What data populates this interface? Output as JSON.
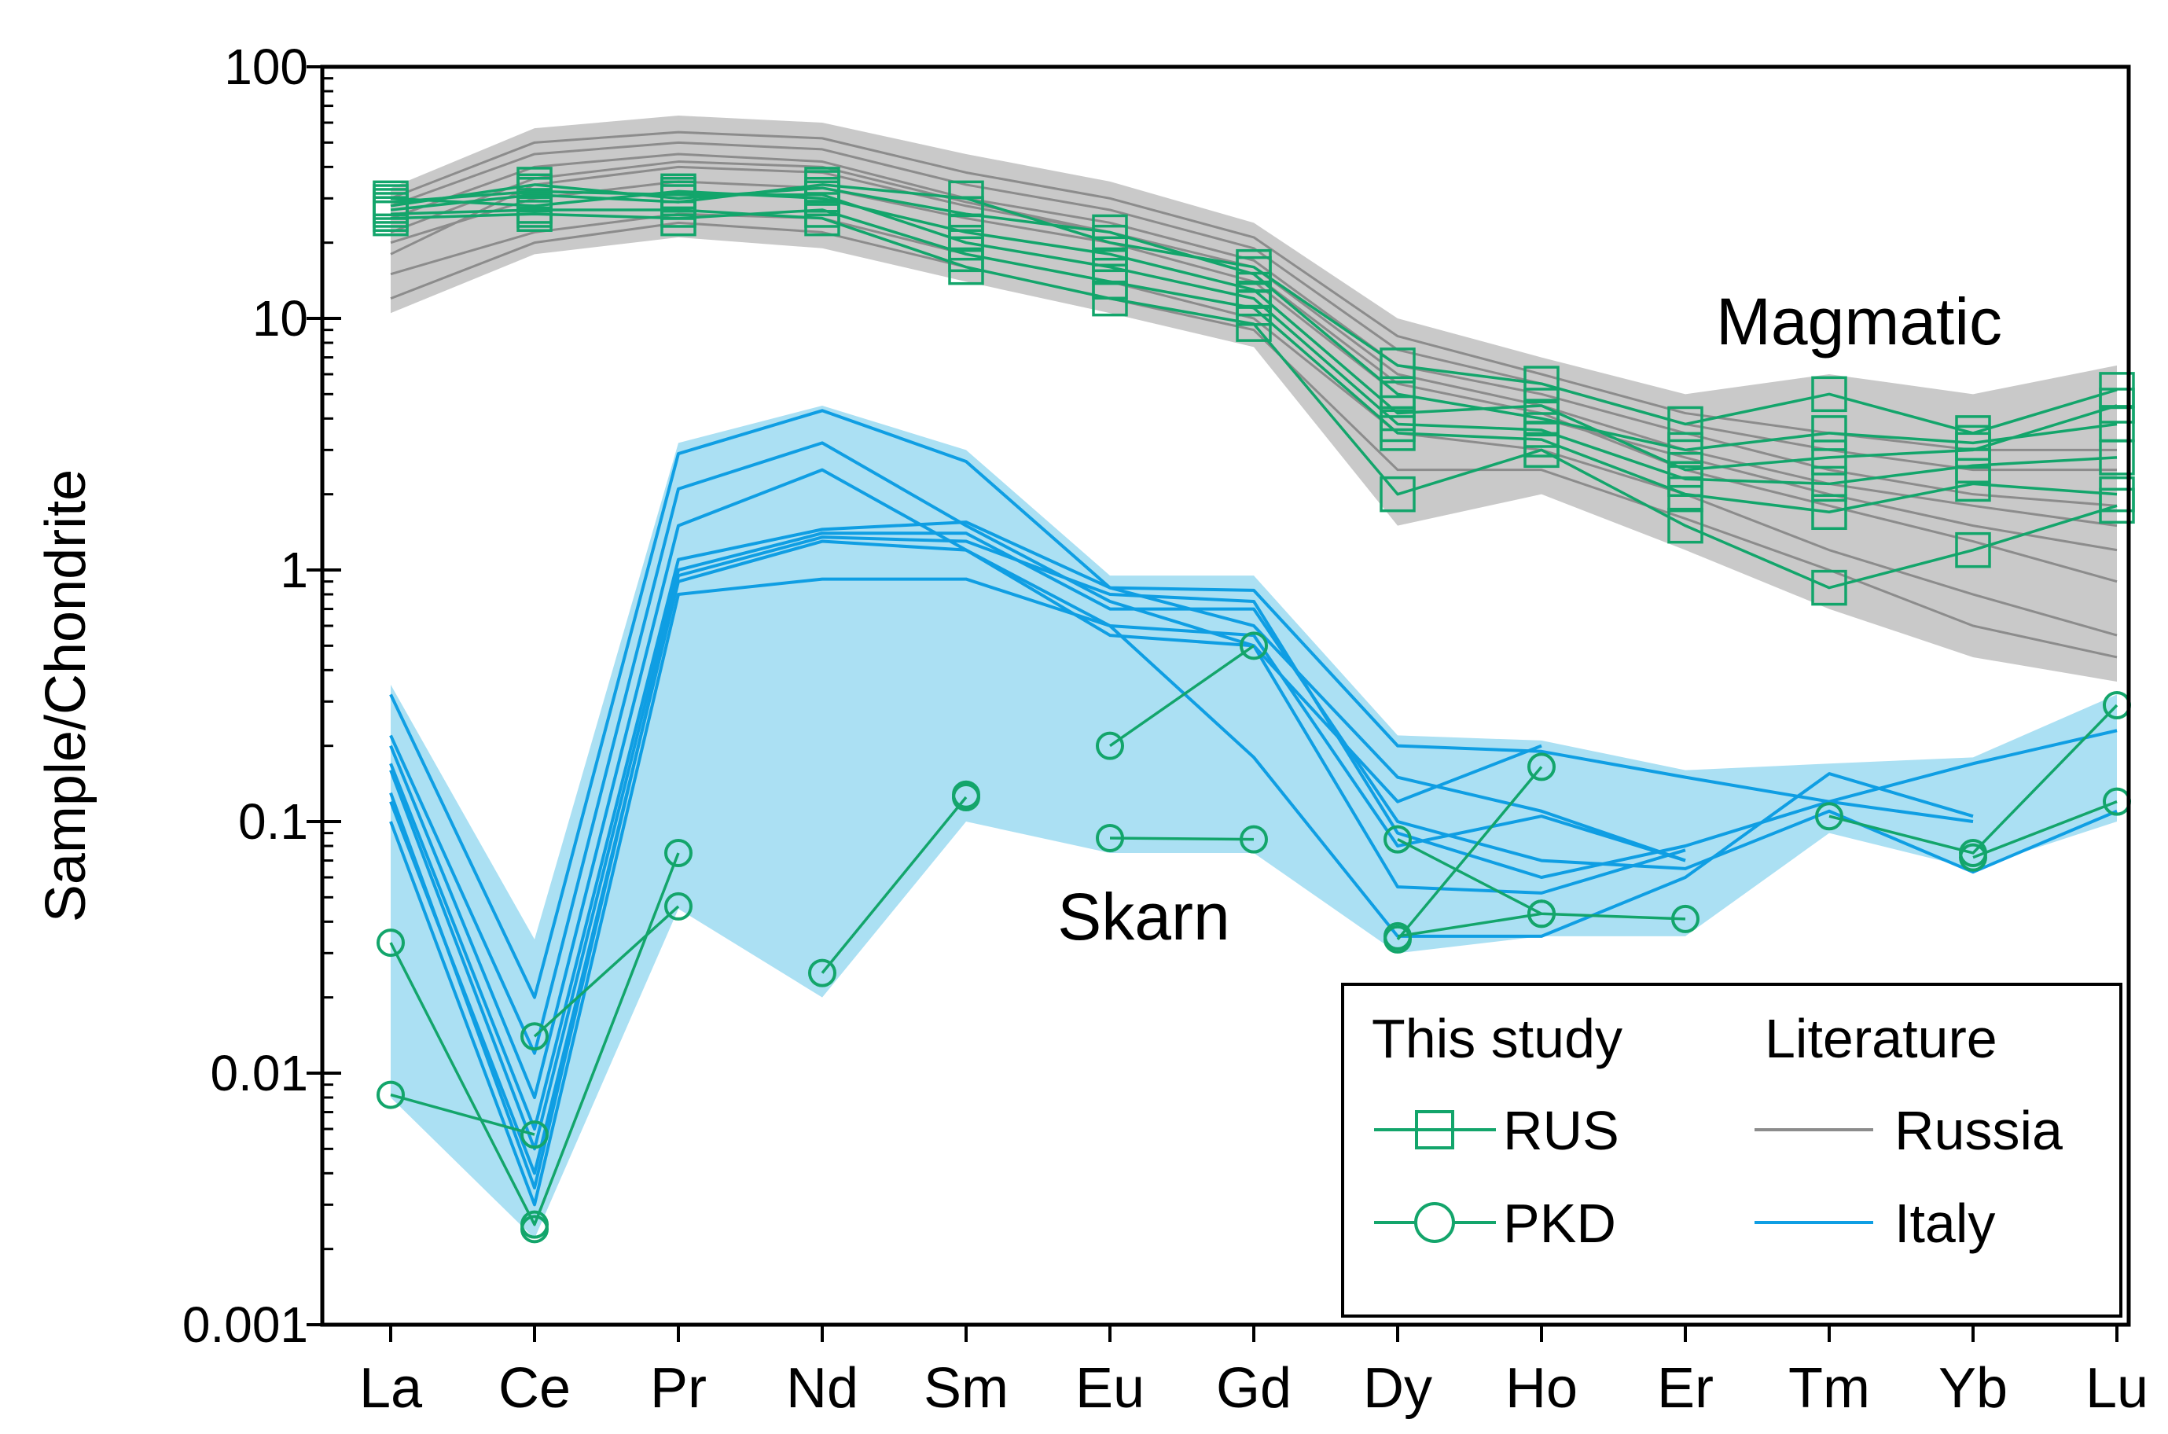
{
  "chart_data": {
    "type": "line",
    "scale": "log",
    "ylabel": "Sample/Chondrite",
    "xlabel": "",
    "categories": [
      "La",
      "Ce",
      "Pr",
      "Nd",
      "Sm",
      "Eu",
      "Gd",
      "Dy",
      "Ho",
      "Er",
      "Tm",
      "Yb",
      "Lu"
    ],
    "ylim": [
      0.001,
      100
    ],
    "yticks": [
      {
        "value": 100,
        "label": "100"
      },
      {
        "value": 10,
        "label": "10"
      },
      {
        "value": 1,
        "label": "1"
      },
      {
        "value": 0.1,
        "label": "0.1"
      },
      {
        "value": 0.01,
        "label": "0.01"
      },
      {
        "value": 0.001,
        "label": "0.001"
      }
    ],
    "annotations": [
      {
        "text": "Magmatic",
        "x": 10.5,
        "y": 10
      },
      {
        "text": "Skarn",
        "x": 5.3,
        "y": 0.047
      }
    ],
    "colors": {
      "rus": "#13a56b",
      "pkd": "#13a56b",
      "russia": "#8c8c8c",
      "russia_band": "#c9c9c9",
      "italy": "#0f9ee3",
      "italy_band": "#abe0f3"
    },
    "legend": {
      "placement": "bottom-right",
      "group1_title": "This study",
      "group2_title": "Literature",
      "rus_label": "RUS",
      "pkd_label": "PKD",
      "russia_label": "Russia",
      "italy_label": "Italy"
    },
    "bands": {
      "russia": {
        "upper": [
          33,
          57,
          64,
          60,
          45,
          35,
          24,
          10,
          7,
          5,
          6,
          5,
          6.5
        ],
        "lower": [
          10.5,
          18,
          21,
          19,
          14,
          10.5,
          7.7,
          1.5,
          2,
          1.2,
          0.7,
          0.45,
          0.36
        ]
      },
      "italy": {
        "upper": [
          0.35,
          0.034,
          3.2,
          4.5,
          3.0,
          0.95,
          0.95,
          0.22,
          0.21,
          0.16,
          0.17,
          0.18,
          0.32
        ],
        "lower": [
          0.008,
          0.0022,
          0.045,
          0.02,
          0.1,
          0.075,
          0.075,
          0.03,
          0.035,
          0.035,
          0.09,
          0.065,
          0.1
        ]
      }
    },
    "series": [
      {
        "name": "Russia-1",
        "group": "russia",
        "values": [
          15,
          22,
          26,
          25,
          18,
          14,
          10,
          3.5,
          3.0,
          2.0,
          1.2,
          0.8,
          0.55
        ]
      },
      {
        "name": "Russia-2",
        "group": "russia",
        "values": [
          20,
          30,
          35,
          33,
          25,
          20,
          14,
          5.0,
          4.0,
          2.8,
          2.0,
          1.5,
          1.2
        ]
      },
      {
        "name": "Russia-3",
        "group": "russia",
        "values": [
          25,
          40,
          45,
          42,
          30,
          24,
          17,
          6.5,
          5.0,
          3.5,
          2.5,
          2.0,
          1.8
        ]
      },
      {
        "name": "Russia-4",
        "group": "russia",
        "values": [
          30,
          50,
          55,
          52,
          38,
          30,
          21,
          8.5,
          6.0,
          4.2,
          3.5,
          3.0,
          3.0
        ]
      },
      {
        "name": "Russia-5",
        "group": "russia",
        "values": [
          12,
          20,
          24,
          22,
          16,
          12,
          9,
          2.5,
          2.5,
          1.6,
          1.0,
          0.6,
          0.45
        ]
      },
      {
        "name": "Russia-6",
        "group": "russia",
        "values": [
          18,
          34,
          40,
          38,
          28,
          22,
          16,
          6.0,
          4.5,
          3.0,
          2.2,
          1.8,
          1.5
        ]
      },
      {
        "name": "Russia-7",
        "group": "russia",
        "values": [
          28,
          45,
          50,
          47,
          34,
          27,
          19,
          7.5,
          5.5,
          3.8,
          3.0,
          2.5,
          2.5
        ]
      },
      {
        "name": "Russia-8",
        "group": "russia",
        "values": [
          22,
          36,
          42,
          40,
          29,
          22,
          15,
          5.5,
          4.2,
          2.5,
          1.8,
          1.3,
          0.9
        ]
      },
      {
        "name": "RUS-1",
        "group": "rus",
        "values": [
          27,
          31,
          29,
          34,
          30,
          20,
          16,
          6.5,
          5.5,
          3.8,
          5.0,
          3.5,
          5.2
        ]
      },
      {
        "name": "RUS-2",
        "group": "rus",
        "values": [
          30,
          28,
          32,
          30,
          22,
          18,
          13,
          4.2,
          4.5,
          2.5,
          2.8,
          3.0,
          4.5
        ]
      },
      {
        "name": "RUS-3",
        "group": "rus",
        "values": [
          25,
          26,
          25,
          27,
          18,
          14,
          11,
          3.5,
          3.3,
          2.0,
          1.7,
          2.2,
          2.0
        ]
      },
      {
        "name": "RUS-4",
        "group": "rus",
        "values": [
          28,
          34,
          30,
          33,
          26,
          22,
          15,
          5.0,
          4.0,
          3.0,
          3.5,
          3.2,
          3.8
        ]
      },
      {
        "name": "RUS-5",
        "group": "rus",
        "values": [
          26,
          27,
          27,
          25,
          16,
          12,
          9.5,
          2.0,
          3.0,
          1.5,
          0.85,
          1.2,
          1.8
        ]
      },
      {
        "name": "RUS-6",
        "group": "rus",
        "values": [
          29,
          32,
          31,
          31,
          20,
          16,
          12,
          3.8,
          3.6,
          2.3,
          2.2,
          2.6,
          2.8
        ]
      },
      {
        "name": "Italy-1",
        "group": "italy",
        "values": [
          0.32,
          0.02,
          2.9,
          4.3,
          2.7,
          0.85,
          0.6,
          0.15,
          0.11,
          0.07,
          null,
          null,
          null
        ]
      },
      {
        "name": "Italy-2",
        "group": "italy",
        "values": [
          0.22,
          0.012,
          2.1,
          3.2,
          1.5,
          0.75,
          0.5,
          0.12,
          0.2,
          null,
          null,
          null,
          null
        ]
      },
      {
        "name": "Italy-3",
        "group": "italy",
        "values": [
          0.2,
          0.008,
          1.5,
          2.5,
          1.2,
          0.55,
          0.5,
          0.055,
          0.052,
          0.077,
          null,
          null,
          null
        ]
      },
      {
        "name": "Italy-4",
        "group": "italy",
        "values": [
          0.17,
          0.006,
          1.1,
          1.45,
          1.55,
          0.85,
          0.83,
          0.2,
          0.19,
          0.15,
          0.12,
          0.1,
          null
        ]
      },
      {
        "name": "Italy-5",
        "group": "italy",
        "values": [
          0.12,
          0.004,
          0.9,
          1.3,
          1.2,
          0.6,
          0.55,
          0.08,
          0.105,
          0.07,
          null,
          null,
          null
        ]
      },
      {
        "name": "Italy-6",
        "group": "italy",
        "values": [
          0.1,
          0.003,
          0.8,
          0.92,
          0.92,
          0.6,
          0.18,
          0.035,
          0.035,
          0.06,
          0.155,
          0.105,
          null
        ]
      },
      {
        "name": "Italy-7",
        "group": "italy",
        "values": [
          0.16,
          0.005,
          1.0,
          1.4,
          1.4,
          0.7,
          0.7,
          0.1,
          0.07,
          0.065,
          0.11,
          0.063,
          0.11
        ]
      },
      {
        "name": "Italy-8",
        "group": "italy",
        "values": [
          0.13,
          0.0035,
          0.95,
          1.35,
          1.3,
          0.8,
          0.75,
          0.09,
          0.06,
          0.08,
          0.12,
          0.17,
          0.23
        ]
      },
      {
        "name": "PKD-1",
        "group": "pkd",
        "values": [
          0.033,
          0.0025,
          0.075,
          null,
          null,
          null,
          null,
          0.085,
          0.043,
          0.041,
          null,
          null,
          null
        ]
      },
      {
        "name": "PKD-2",
        "group": "pkd",
        "values": [
          0.0082,
          0.0057,
          null,
          null,
          null,
          null,
          null,
          null,
          null,
          null,
          null,
          null,
          null
        ]
      },
      {
        "name": "PKD-3",
        "group": "pkd",
        "values": [
          null,
          0.0024,
          null,
          null,
          null,
          null,
          null,
          0.035,
          0.043,
          null,
          null,
          null,
          null
        ]
      },
      {
        "name": "PKD-4",
        "group": "pkd",
        "values": [
          null,
          0.014,
          0.046,
          null,
          null,
          null,
          null,
          0.034,
          0.165,
          null,
          null,
          null,
          null
        ]
      },
      {
        "name": "PKD-5",
        "group": "pkd",
        "values": [
          null,
          null,
          null,
          0.025,
          0.125,
          null,
          null,
          null,
          null,
          null,
          null,
          null,
          null
        ]
      },
      {
        "name": "PKD-6",
        "group": "pkd",
        "values": [
          null,
          null,
          null,
          null,
          null,
          0.2,
          0.5,
          null,
          null,
          null,
          null,
          null,
          null
        ]
      },
      {
        "name": "PKD-7",
        "group": "pkd",
        "values": [
          null,
          null,
          null,
          null,
          null,
          0.086,
          0.085,
          null,
          null,
          null,
          0.105,
          0.075,
          0.29
        ]
      },
      {
        "name": "PKD-8",
        "group": "pkd",
        "values": [
          null,
          null,
          null,
          null,
          0.128,
          null,
          null,
          null,
          null,
          null,
          null,
          0.072,
          0.12
        ]
      }
    ]
  }
}
